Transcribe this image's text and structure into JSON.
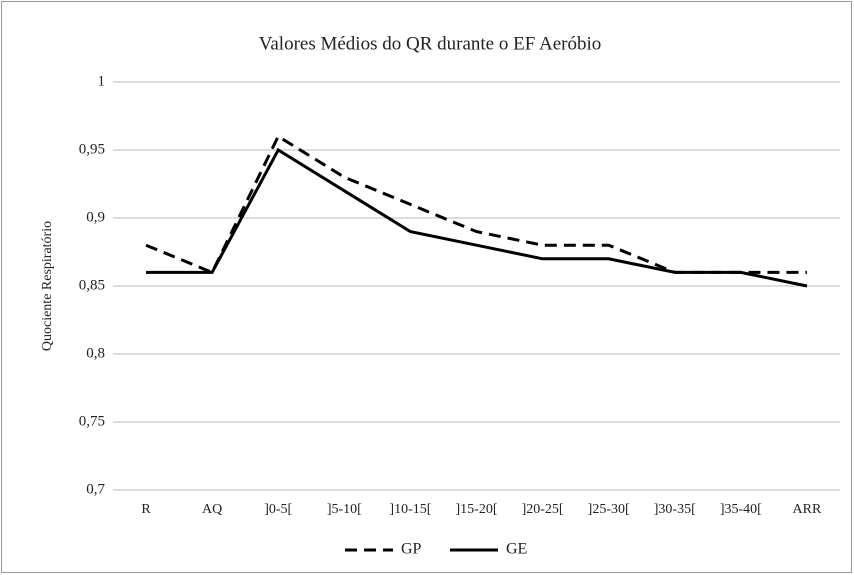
{
  "chart_data": {
    "type": "line",
    "title": "Valores Médios do QR durante o EF Aeróbio",
    "y_label": "Quociente Respiratório",
    "categories": [
      "R",
      "AQ",
      "]0-5[",
      "]5-10[",
      "]10-15[",
      "]15-20[",
      "]20-25[",
      "]25-30[",
      "]30-35[",
      "]35-40[",
      "ARR"
    ],
    "series": [
      {
        "name": "GP",
        "color": "#000000",
        "dash": "dashed",
        "values": [
          0.88,
          0.86,
          0.96,
          0.93,
          0.91,
          0.89,
          0.88,
          0.88,
          0.86,
          0.86,
          0.86
        ]
      },
      {
        "name": "GE",
        "color": "#000000",
        "dash": "solid",
        "values": [
          0.86,
          0.86,
          0.95,
          0.92,
          0.89,
          0.88,
          0.87,
          0.87,
          0.86,
          0.86,
          0.85
        ]
      }
    ],
    "ylim": [
      0.7,
      1
    ],
    "yticks": [
      {
        "value": 0.7,
        "label": "0,7"
      },
      {
        "value": 0.75,
        "label": "0,75"
      },
      {
        "value": 0.8,
        "label": "0,8"
      },
      {
        "value": 0.85,
        "label": "0,85"
      },
      {
        "value": 0.9,
        "label": "0,9"
      },
      {
        "value": 0.95,
        "label": "0,95"
      },
      1
    ],
    "grid": true,
    "legend": "bottom"
  }
}
